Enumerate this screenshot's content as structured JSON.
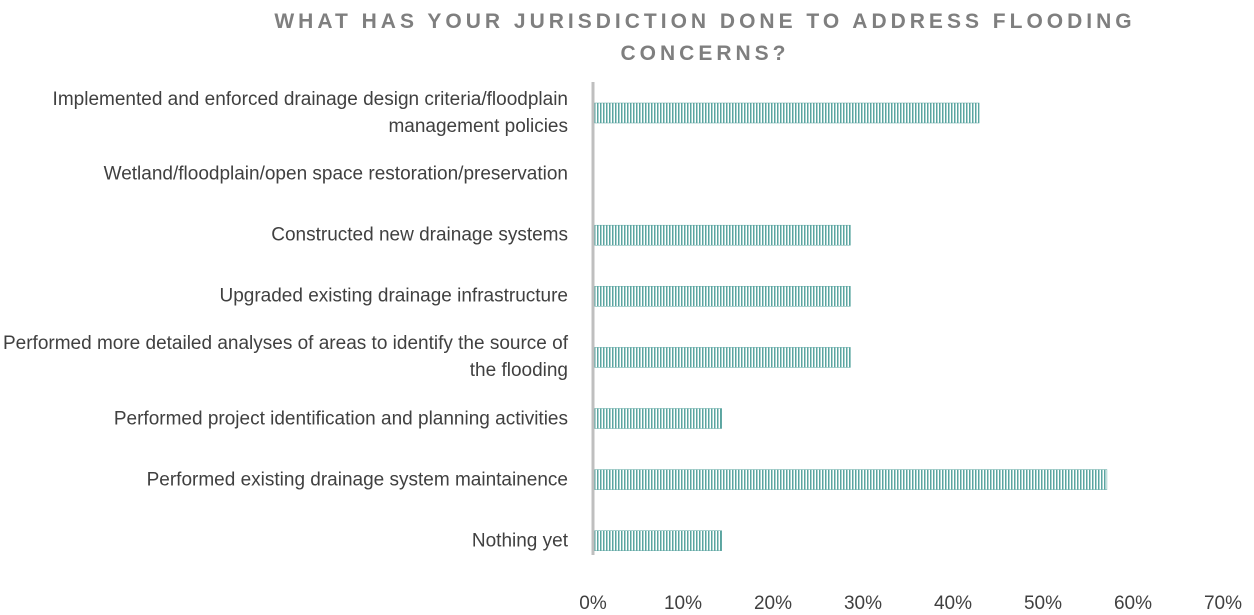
{
  "chart_data": {
    "type": "bar",
    "orientation": "horizontal",
    "title": "WHAT HAS YOUR JURISDICTION DONE TO ADDRESS FLOODING CONCERNS?",
    "categories": [
      "Implemented and enforced drainage design criteria/floodplain management policies",
      "Wetland/floodplain/open space restoration/preservation",
      "Constructed new drainage systems",
      "Upgraded existing drainage infrastructure",
      "Performed more detailed analyses of areas to identify the source of the flooding",
      "Performed project identification and planning activities",
      "Performed existing drainage system maintainence",
      "Nothing yet"
    ],
    "values": [
      42.9,
      0,
      28.6,
      28.6,
      28.6,
      14.3,
      57.1,
      14.3
    ],
    "color": "#5aa5a0",
    "xlim": [
      0,
      70
    ],
    "xticks": [
      {
        "value": 0,
        "label": "0%"
      },
      {
        "value": 10,
        "label": "10%"
      },
      {
        "value": 20,
        "label": "20%"
      },
      {
        "value": 30,
        "label": "30%"
      },
      {
        "value": 40,
        "label": "40%"
      },
      {
        "value": 50,
        "label": "50%"
      },
      {
        "value": 60,
        "label": "60%"
      },
      {
        "value": 70,
        "label": "70%"
      }
    ],
    "grid": false
  }
}
